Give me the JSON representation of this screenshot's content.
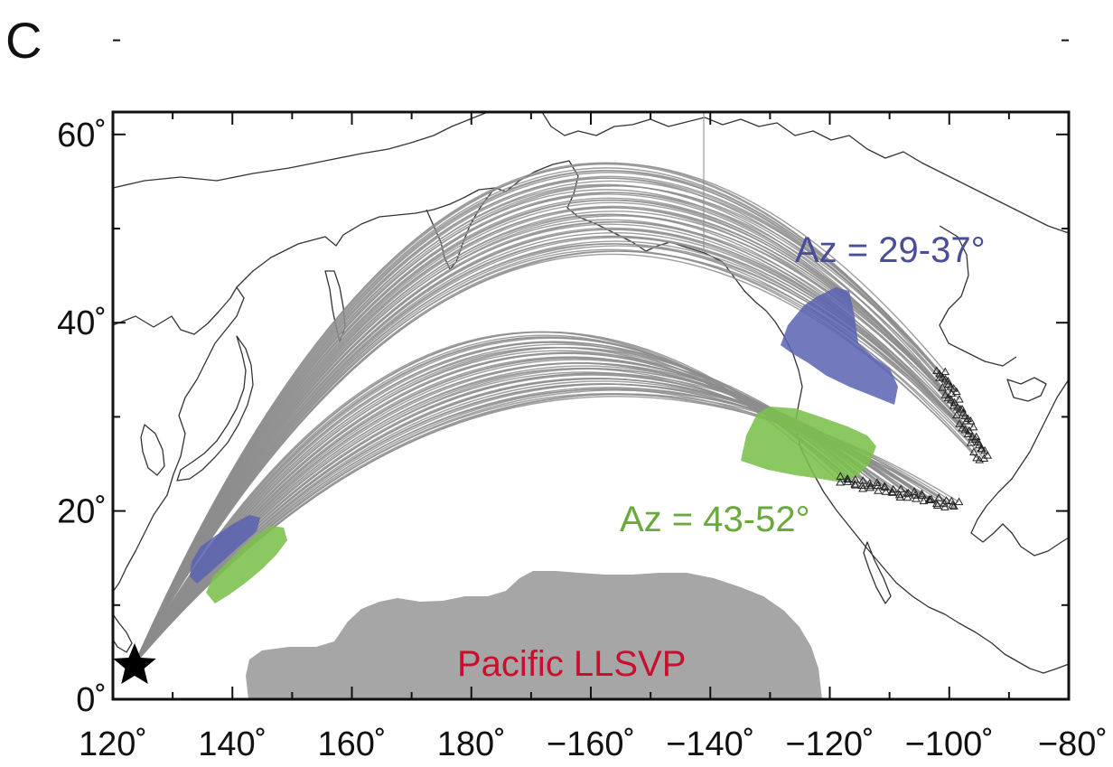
{
  "panel_label": "C",
  "x_ticks": [
    {
      "lon": 120,
      "label": "120˚"
    },
    {
      "lon": 140,
      "label": "140˚"
    },
    {
      "lon": 160,
      "label": "160˚"
    },
    {
      "lon": 180,
      "label": "180˚"
    },
    {
      "lon": 200,
      "label": "−160˚"
    },
    {
      "lon": 220,
      "label": "−140˚"
    },
    {
      "lon": 240,
      "label": "−120˚"
    },
    {
      "lon": 260,
      "label": "−100˚"
    },
    {
      "lon": 280,
      "label": "−80˚"
    }
  ],
  "y_ticks": [
    {
      "lat": 0,
      "label": "0˚"
    },
    {
      "lat": 20,
      "label": "20˚"
    },
    {
      "lat": 40,
      "label": "40˚"
    },
    {
      "lat": 60,
      "label": "60˚"
    }
  ],
  "annotations": {
    "north_group": {
      "text": "Az = 29-37°",
      "color": "#4a4e9a"
    },
    "south_group": {
      "text": "Az = 43-52°",
      "color": "#6aaa3c"
    },
    "llsvp": {
      "text": "Pacific LLSVP",
      "color": "#c8102e"
    }
  },
  "colors": {
    "ray_paths": "#8d8d8d",
    "north_highlight": "#5b62b2",
    "south_highlight": "#7cc04c",
    "llsvp_fill": "#a6a6a6",
    "coastline": "#333333"
  },
  "source_symbol": "star-icon"
}
